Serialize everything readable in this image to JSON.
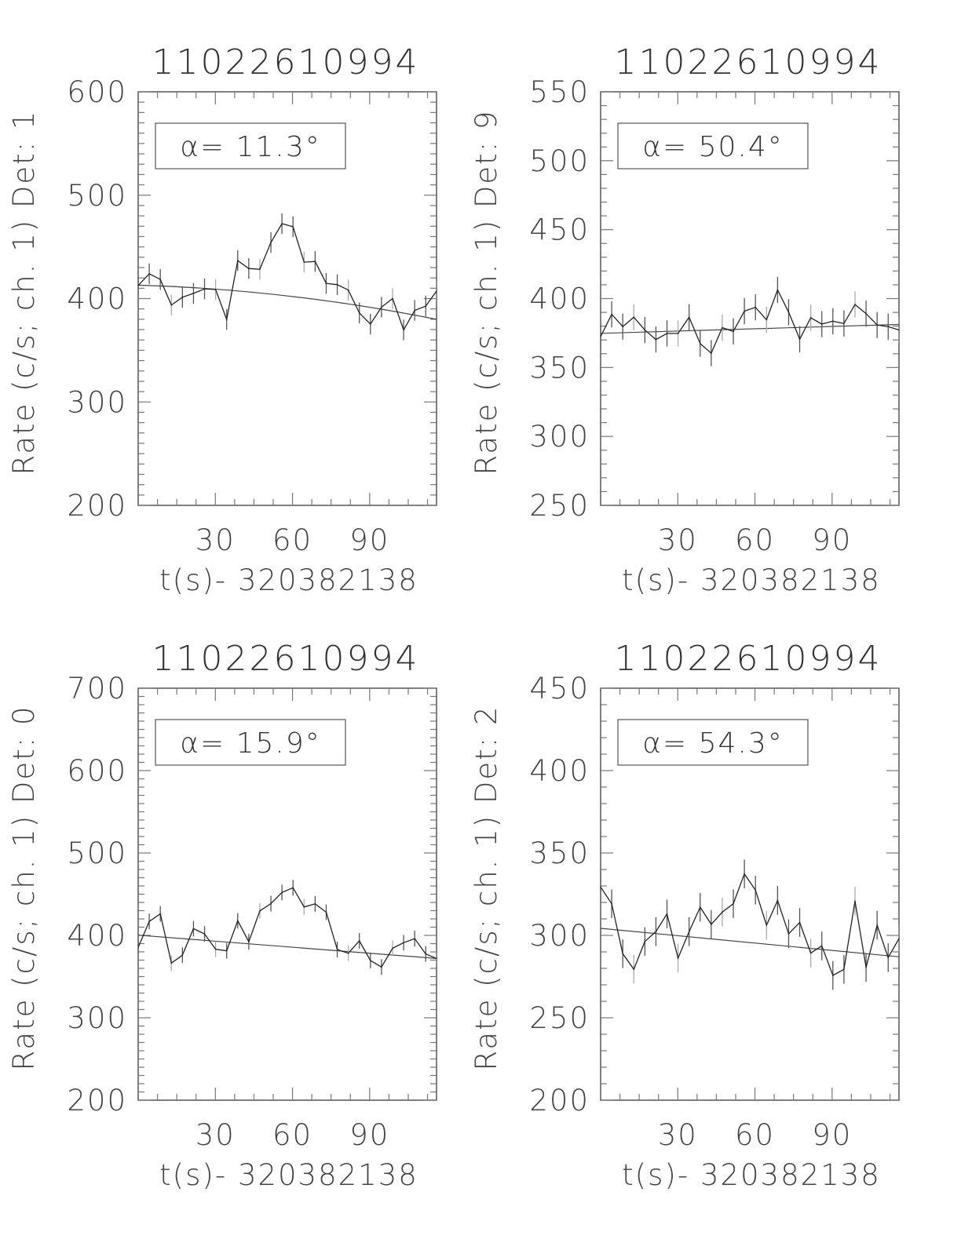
{
  "chart_data": [
    {
      "type": "line",
      "title": "11022610994",
      "xlabel": "t(s)- 320382138",
      "ylabel": "Rate (c/s; ch. 1) Det: 1",
      "annotation": "α= 11.3°",
      "xlim": [
        0,
        116
      ],
      "ylim": [
        200,
        600
      ],
      "xticks": [
        30,
        60,
        90
      ],
      "yticks": [
        200,
        300,
        400,
        500,
        600
      ],
      "x_step": 4.3,
      "y": [
        412.7,
        424,
        418.5,
        393.7,
        401.3,
        405,
        409.4,
        408.9,
        379.8,
        436.7,
        429.1,
        428.3,
        454.3,
        472.5,
        469.5,
        435.2,
        435.9,
        414.7,
        413.4,
        408.3,
        386.1,
        375.3,
        391.7,
        400,
        369.7,
        388.6,
        392.7,
        407.6
      ],
      "y_err": 10,
      "fit": {
        "x": [
          0,
          58,
          116
        ],
        "y": [
          413,
          402.6,
          380
        ]
      }
    },
    {
      "type": "line",
      "title": "11022610994",
      "xlabel": "t(s)- 320382138",
      "ylabel": "Rate (c/s; ch. 1) Det: 9",
      "annotation": "α= 50.4°",
      "xlim": [
        0,
        116
      ],
      "ylim": [
        250,
        550
      ],
      "xticks": [
        30,
        60,
        90
      ],
      "yticks": [
        250,
        300,
        350,
        400,
        450,
        500,
        550
      ],
      "x_step": 4.3,
      "y": [
        372.4,
        388.6,
        379.7,
        386.5,
        377.2,
        370.3,
        374.7,
        374.7,
        386.5,
        367.3,
        360.4,
        378.9,
        376.2,
        390.9,
        393.7,
        384.6,
        406.3,
        390.1,
        370.5,
        386.1,
        381.5,
        383.6,
        381.9,
        395.7,
        389.1,
        380.8,
        379.7,
        377.2
      ],
      "y_err": 9.5,
      "fit": {
        "x": [
          0,
          116
        ],
        "y": [
          374.8,
          381.2
        ]
      }
    },
    {
      "type": "line",
      "title": "11022610994",
      "xlabel": "t(s)- 320382138",
      "ylabel": "Rate (c/s; ch. 1) Det: 0",
      "annotation": "α= 15.9°",
      "xlim": [
        0,
        116
      ],
      "ylim": [
        200,
        700
      ],
      "xticks": [
        30,
        60,
        90
      ],
      "yticks": [
        200,
        300,
        400,
        500,
        600,
        700
      ],
      "x_step": 4.3,
      "y": [
        385.4,
        417,
        426.2,
        366.4,
        375.9,
        408.2,
        401.8,
        383.2,
        381.3,
        417.7,
        392.3,
        429.7,
        438.6,
        452.1,
        457.8,
        434.5,
        438.3,
        428.1,
        382.8,
        378.4,
        393.3,
        369.5,
        361.6,
        384.4,
        391.1,
        396.1,
        377.5,
        371.8
      ],
      "y_err": 9.5,
      "fit": {
        "x": [
          0,
          116
        ],
        "y": [
          400.3,
          372
        ]
      }
    },
    {
      "type": "line",
      "title": "11022610994",
      "xlabel": "t(s)- 320382138",
      "ylabel": "Rate (c/s; ch. 1) Det: 2",
      "annotation": "α= 54.3°",
      "xlim": [
        0,
        116
      ],
      "ylim": [
        200,
        450
      ],
      "xticks": [
        30,
        60,
        90
      ],
      "yticks": [
        200,
        250,
        300,
        350,
        400,
        450
      ],
      "x_step": 4.3,
      "y": [
        329.4,
        319.2,
        288.9,
        279.4,
        296.3,
        302.3,
        313,
        286.2,
        302.3,
        317.1,
        306.7,
        314.1,
        319.2,
        337.3,
        327.5,
        306.2,
        321.2,
        301,
        307.8,
        289.3,
        293.6,
        275.7,
        279.4,
        320.8,
        280.6,
        306.2,
        286.5,
        298.3
      ],
      "y_err": 8.7,
      "fit": {
        "x": [
          0,
          116
        ],
        "y": [
          304.3,
          287
        ]
      }
    }
  ]
}
